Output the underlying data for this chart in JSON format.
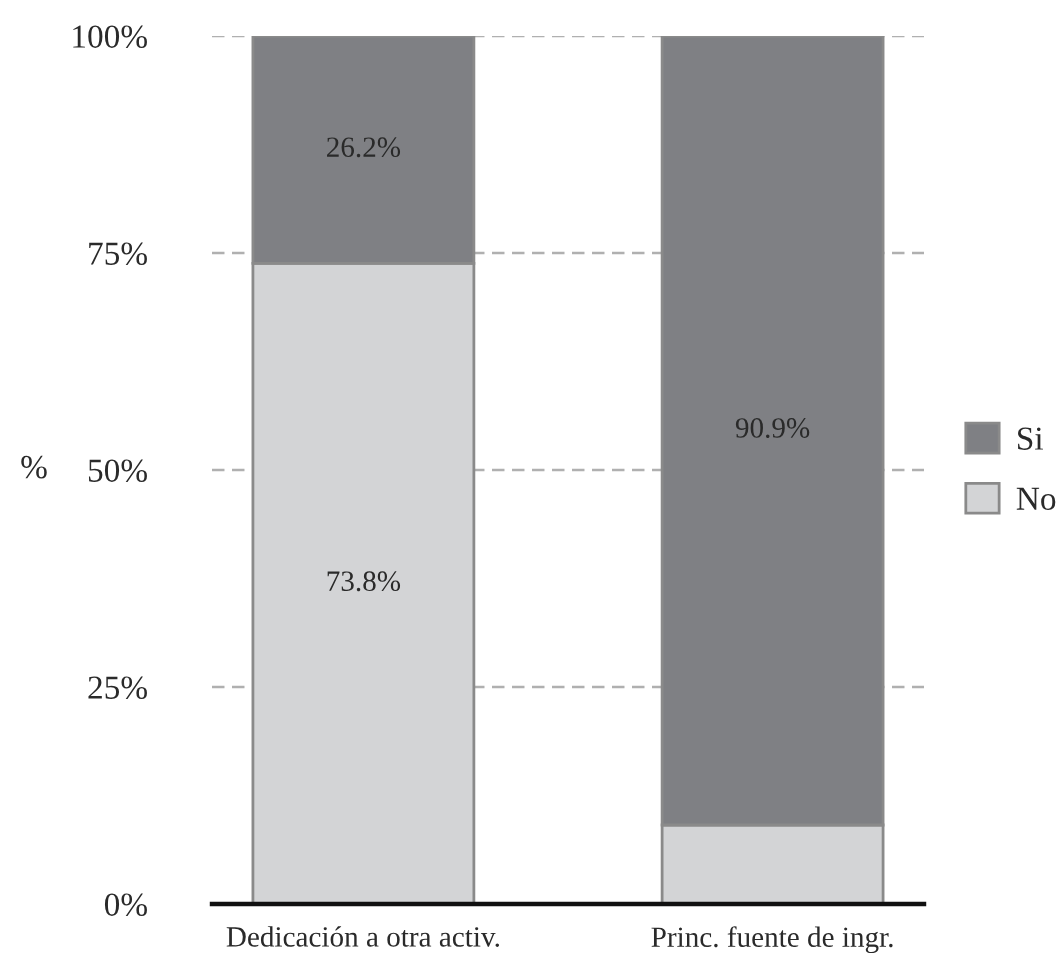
{
  "chart_data": {
    "type": "bar",
    "stacked": true,
    "categories": [
      "Dedicación a otra activ.",
      "Princ. fuente de ingr."
    ],
    "series": [
      {
        "name": "No",
        "color": "#d3d4d6",
        "values": [
          73.8,
          9.1
        ],
        "value_labels": [
          "73.8%",
          null
        ]
      },
      {
        "name": "Si",
        "color": "#7f8084",
        "values": [
          26.2,
          90.9
        ],
        "value_labels": [
          "26.2%",
          "90.9%"
        ]
      }
    ],
    "ylabel": "%",
    "ylim": [
      0,
      100
    ],
    "yticks": [
      {
        "value": 0,
        "label": "0%"
      },
      {
        "value": 25,
        "label": "25%"
      },
      {
        "value": 50,
        "label": "50%"
      },
      {
        "value": 75,
        "label": "75%"
      },
      {
        "value": 100,
        "label": "100%"
      }
    ],
    "grid": "y",
    "legend": "right"
  }
}
